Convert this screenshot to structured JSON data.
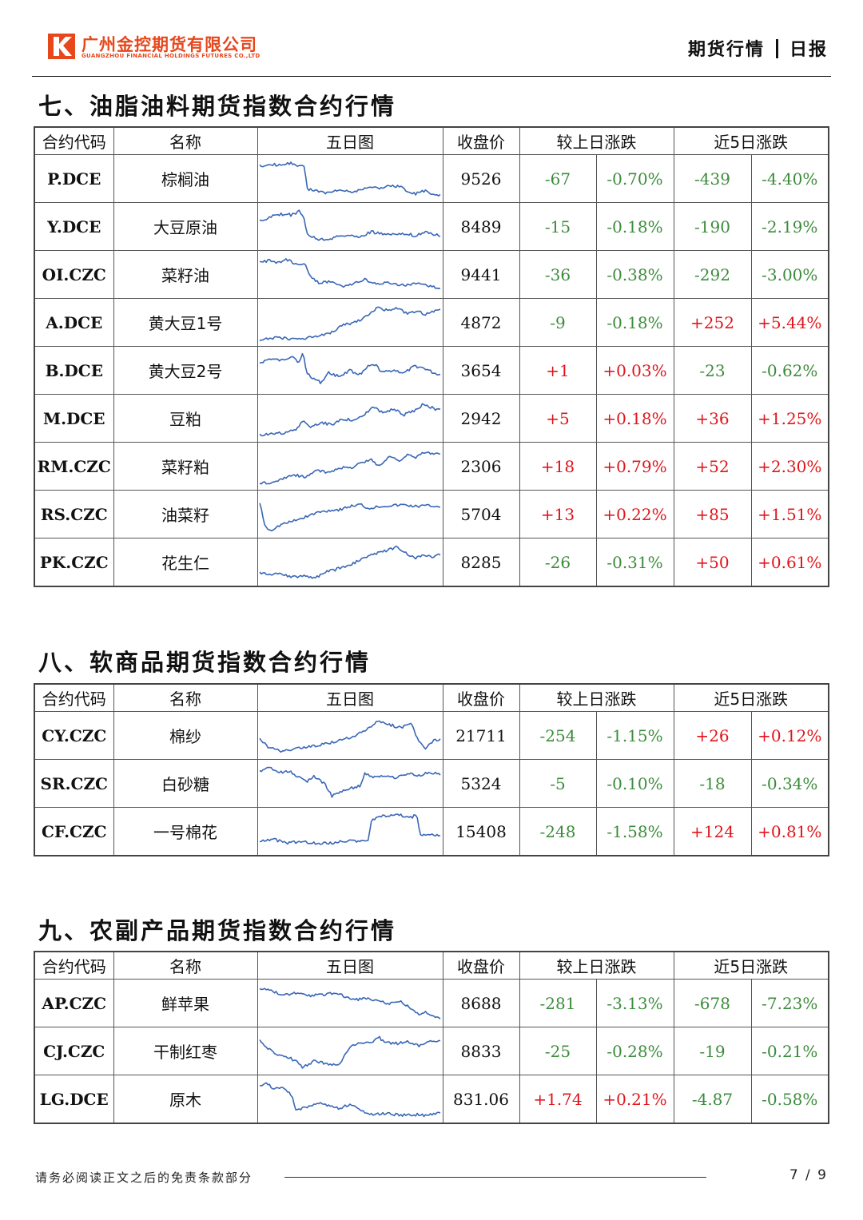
{
  "header": {
    "company_cn": "广州金控期货有限公司",
    "company_en": "GUANGZHOU FINANCIAL HOLDINGS FUTURES CO.,LTD",
    "doc_type": "期货行情",
    "doc_period": "日报"
  },
  "columns": {
    "code": "合约代码",
    "name": "名称",
    "chart": "五日图",
    "close": "收盘价",
    "daily": "较上日涨跌",
    "five_day": "近5日涨跌"
  },
  "colors": {
    "up": "#e0151b",
    "down": "#3c8c3c",
    "sparkline": "#3a67b6",
    "logo": "#e8471c"
  },
  "sections": [
    {
      "title": "七、油脂油料期货指数合约行情",
      "rows": [
        {
          "code": "P.DCE",
          "name": "棕榈油",
          "close": "9526",
          "d_abs": "-67",
          "d_pct": "-0.70%",
          "w_abs": "-439",
          "w_pct": "-4.40%"
        },
        {
          "code": "Y.DCE",
          "name": "大豆原油",
          "close": "8489",
          "d_abs": "-15",
          "d_pct": "-0.18%",
          "w_abs": "-190",
          "w_pct": "-2.19%"
        },
        {
          "code": "OI.CZC",
          "name": "菜籽油",
          "close": "9441",
          "d_abs": "-36",
          "d_pct": "-0.38%",
          "w_abs": "-292",
          "w_pct": "-3.00%"
        },
        {
          "code": "A.DCE",
          "name": "黄大豆1号",
          "close": "4872",
          "d_abs": "-9",
          "d_pct": "-0.18%",
          "w_abs": "+252",
          "w_pct": "+5.44%"
        },
        {
          "code": "B.DCE",
          "name": "黄大豆2号",
          "close": "3654",
          "d_abs": "+1",
          "d_pct": "+0.03%",
          "w_abs": "-23",
          "w_pct": "-0.62%"
        },
        {
          "code": "M.DCE",
          "name": "豆粕",
          "close": "2942",
          "d_abs": "+5",
          "d_pct": "+0.18%",
          "w_abs": "+36",
          "w_pct": "+1.25%"
        },
        {
          "code": "RM.CZC",
          "name": "菜籽粕",
          "close": "2306",
          "d_abs": "+18",
          "d_pct": "+0.79%",
          "w_abs": "+52",
          "w_pct": "+2.30%"
        },
        {
          "code": "RS.CZC",
          "name": "油菜籽",
          "close": "5704",
          "d_abs": "+13",
          "d_pct": "+0.22%",
          "w_abs": "+85",
          "w_pct": "+1.51%"
        },
        {
          "code": "PK.CZC",
          "name": "花生仁",
          "close": "8285",
          "d_abs": "-26",
          "d_pct": "-0.31%",
          "w_abs": "+50",
          "w_pct": "+0.61%"
        }
      ]
    },
    {
      "title": "八、软商品期货指数合约行情",
      "rows": [
        {
          "code": "CY.CZC",
          "name": "棉纱",
          "close": "21711",
          "d_abs": "-254",
          "d_pct": "-1.15%",
          "w_abs": "+26",
          "w_pct": "+0.12%"
        },
        {
          "code": "SR.CZC",
          "name": "白砂糖",
          "close": "5324",
          "d_abs": "-5",
          "d_pct": "-0.10%",
          "w_abs": "-18",
          "w_pct": "-0.34%"
        },
        {
          "code": "CF.CZC",
          "name": "一号棉花",
          "close": "15408",
          "d_abs": "-248",
          "d_pct": "-1.58%",
          "w_abs": "+124",
          "w_pct": "+0.81%"
        }
      ]
    },
    {
      "title": "九、农副产品期货指数合约行情",
      "rows": [
        {
          "code": "AP.CZC",
          "name": "鲜苹果",
          "close": "8688",
          "d_abs": "-281",
          "d_pct": "-3.13%",
          "w_abs": "-678",
          "w_pct": "-7.23%"
        },
        {
          "code": "CJ.CZC",
          "name": "干制红枣",
          "close": "8833",
          "d_abs": "-25",
          "d_pct": "-0.28%",
          "w_abs": "-19",
          "w_pct": "-0.21%"
        },
        {
          "code": "LG.DCE",
          "name": "原木",
          "close": "831.06",
          "d_abs": "+1.74",
          "d_pct": "+0.21%",
          "w_abs": "-4.87",
          "w_pct": "-0.58%"
        }
      ]
    }
  ],
  "footer": {
    "disclaimer": "请务必阅读正文之后的免责条款部分",
    "page": "7 / 9"
  }
}
